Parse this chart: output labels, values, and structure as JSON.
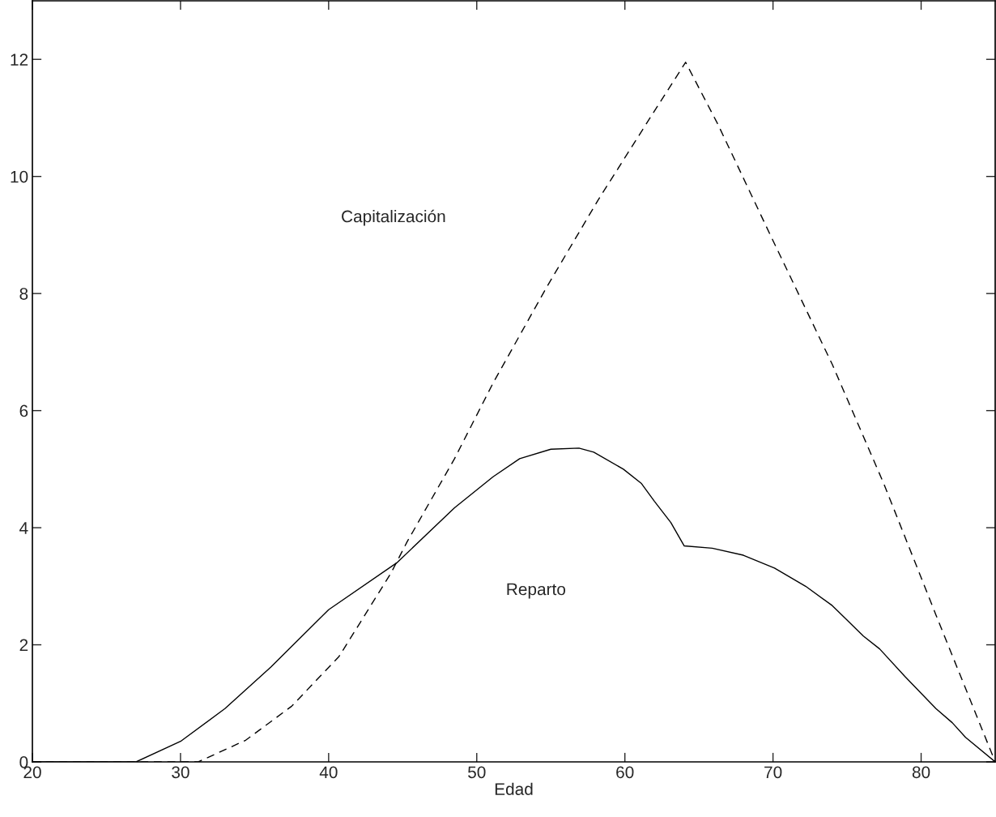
{
  "chart_data": {
    "type": "line",
    "xlabel": "Edad",
    "xlim": [
      20,
      85
    ],
    "ylim": [
      0,
      13
    ],
    "xticks": [
      20,
      30,
      40,
      50,
      60,
      70,
      80
    ],
    "yticks": [
      0,
      2,
      4,
      6,
      8,
      10,
      12
    ],
    "grid": false,
    "legend": false,
    "marker": "none",
    "series": [
      {
        "color": "#000000",
        "line_style": "solid",
        "x": [
          20,
          27.0,
          30,
          33,
          36.1,
          40,
          44.6,
          48.5,
          51.1,
          52.9,
          55,
          56.9,
          57.9,
          59.9,
          61.1,
          62.0,
          63.1,
          64.0,
          65.9,
          68.0,
          70.1,
          72.2,
          74.0,
          76.1,
          77.2,
          78.9,
          81.0,
          82.1,
          83.0,
          85
        ],
        "values": [
          0,
          0,
          0.35,
          0.91,
          1.62,
          2.6,
          3.4,
          4.34,
          4.87,
          5.18,
          5.34,
          5.36,
          5.29,
          5.0,
          4.76,
          4.45,
          4.09,
          3.69,
          3.65,
          3.53,
          3.31,
          3.0,
          2.67,
          2.15,
          1.93,
          1.46,
          0.91,
          0.67,
          0.42,
          0
        ]
      },
      {
        "color": "#000000",
        "line_style": "dashed",
        "x": [
          20,
          31.2,
          34.4,
          37.5,
          40.7,
          44.2,
          45.3,
          48.5,
          51.1,
          54.7,
          58.2,
          61.7,
          64.1,
          66.3,
          69.8,
          74.0,
          77.5,
          81.0,
          85
        ],
        "values": [
          0,
          0,
          0.37,
          0.95,
          1.8,
          3.22,
          3.76,
          5.18,
          6.47,
          8.1,
          9.6,
          11.0,
          11.95,
          10.88,
          9.01,
          6.79,
          4.74,
          2.51,
          0
        ]
      }
    ],
    "annotations": [
      "Capitalización",
      "Reparto"
    ]
  }
}
